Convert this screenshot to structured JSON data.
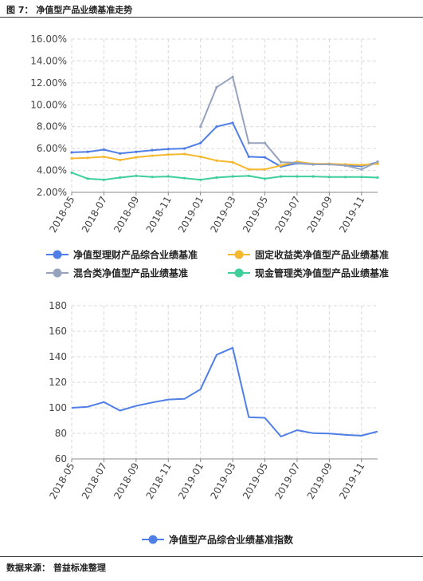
{
  "figure": {
    "title": "图 7： 净值型产品业绩基准走势",
    "source": "数据来源： 普益标准整理"
  },
  "colors": {
    "blue": "#4f7fe6",
    "orange": "#f5b82e",
    "gray": "#96a3bd",
    "green": "#3fcf9a"
  },
  "chart_data": [
    {
      "type": "line",
      "title": "",
      "xlabel": "",
      "ylabel": "",
      "ylim": [
        0.02,
        0.16
      ],
      "y_ticks": [
        "2.00%",
        "4.00%",
        "6.00%",
        "8.00%",
        "10.00%",
        "12.00%",
        "14.00%",
        "16.00%"
      ],
      "x": [
        "2018-05",
        "2018-06",
        "2018-07",
        "2018-08",
        "2018-09",
        "2018-10",
        "2018-11",
        "2018-12",
        "2019-01",
        "2019-02",
        "2019-03",
        "2019-04",
        "2019-05",
        "2019-06",
        "2019-07",
        "2019-08",
        "2019-09",
        "2019-10",
        "2019-11",
        "2019-12"
      ],
      "x_tick_labels": [
        "2018-05",
        "2018-07",
        "2018-09",
        "2018-11",
        "2019-01",
        "2019-03",
        "2019-05",
        "2019-07",
        "2019-09",
        "2019-11"
      ],
      "grid": true,
      "legend_position": "bottom",
      "series": [
        {
          "name": "净值型理财产品综合业绩基准",
          "color": "#4f7fe6",
          "marker": true,
          "values": [
            0.0565,
            0.057,
            0.059,
            0.0555,
            0.057,
            0.0585,
            0.0595,
            0.06,
            0.065,
            0.08,
            0.0835,
            0.0525,
            0.052,
            0.0435,
            0.0465,
            0.0455,
            0.046,
            0.0445,
            0.044,
            0.0475
          ]
        },
        {
          "name": "固定收益类净值型产品业绩基准",
          "color": "#f5b82e",
          "marker": true,
          "values": [
            0.051,
            0.0515,
            0.0525,
            0.0495,
            0.052,
            0.0535,
            0.0545,
            0.055,
            0.0525,
            0.049,
            0.0475,
            0.041,
            0.041,
            0.0445,
            0.048,
            0.046,
            0.046,
            0.0455,
            0.045,
            0.046
          ]
        },
        {
          "name": "混合类净值型产品业绩基准",
          "color": "#96a3bd",
          "marker": true,
          "values": [
            null,
            null,
            null,
            null,
            null,
            null,
            null,
            null,
            0.08,
            0.116,
            0.1255,
            0.065,
            0.065,
            0.0475,
            0.047,
            0.0455,
            0.0455,
            0.0445,
            0.041,
            0.048
          ]
        },
        {
          "name": "现金管理类净值型产品业绩基准",
          "color": "#3fcf9a",
          "marker": true,
          "values": [
            0.038,
            0.0325,
            0.0315,
            0.0335,
            0.035,
            0.034,
            0.0345,
            0.033,
            0.0315,
            0.0335,
            0.0345,
            0.035,
            0.0325,
            0.0345,
            0.0345,
            0.0345,
            0.034,
            0.034,
            0.034,
            0.0335
          ]
        }
      ]
    },
    {
      "type": "line",
      "title": "",
      "xlabel": "",
      "ylabel": "",
      "ylim": [
        60,
        180
      ],
      "y_ticks": [
        "60",
        "80",
        "100",
        "120",
        "140",
        "160",
        "180"
      ],
      "x": [
        "2018-05",
        "2018-06",
        "2018-07",
        "2018-08",
        "2018-09",
        "2018-10",
        "2018-11",
        "2018-12",
        "2019-01",
        "2019-02",
        "2019-03",
        "2019-04",
        "2019-05",
        "2019-06",
        "2019-07",
        "2019-08",
        "2019-09",
        "2019-10",
        "2019-11",
        "2019-12"
      ],
      "x_tick_labels": [
        "2018-05",
        "2018-07",
        "2018-09",
        "2018-11",
        "2019-01",
        "2019-03",
        "2019-05",
        "2019-07",
        "2019-09",
        "2019-11"
      ],
      "grid": true,
      "legend_position": "bottom",
      "series": [
        {
          "name": "净值型产品综合业绩基准指数",
          "color": "#4f7fe6",
          "marker": false,
          "values": [
            100,
            100.8,
            104.5,
            97.8,
            101.5,
            104.2,
            106.5,
            107,
            114.5,
            141.5,
            147,
            92.7,
            92.2,
            77.5,
            82.5,
            80.1,
            79.8,
            78.8,
            78.2,
            81.5
          ]
        }
      ]
    }
  ]
}
